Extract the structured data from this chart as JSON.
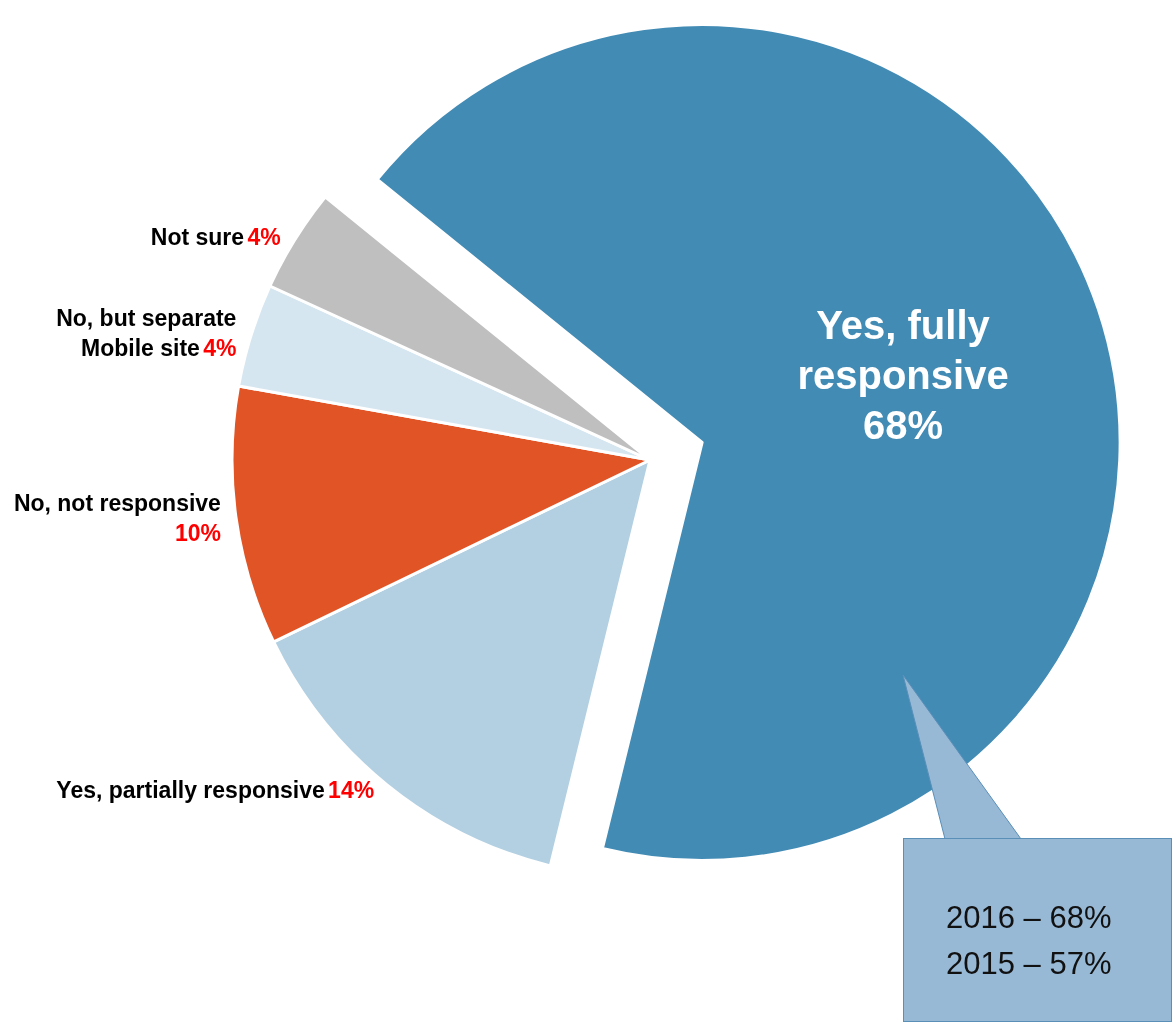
{
  "chart_data": {
    "type": "pie",
    "categories": [
      "Yes, fully responsive",
      "Yes, partially responsive",
      "No, not responsive",
      "No, but separate Mobile site",
      "Not sure"
    ],
    "values": [
      68,
      14,
      10,
      4,
      4
    ],
    "colors": [
      "#428bb5",
      "#b2d0e2",
      "#e05426",
      "#d6e6f0",
      "#bfbfbf"
    ],
    "value_labels": [
      "68%",
      "14%",
      "10%",
      "4%",
      "4%"
    ],
    "legend": false,
    "annotations": [
      "2016 – 68%",
      "2015 – 57%"
    ]
  }
}
